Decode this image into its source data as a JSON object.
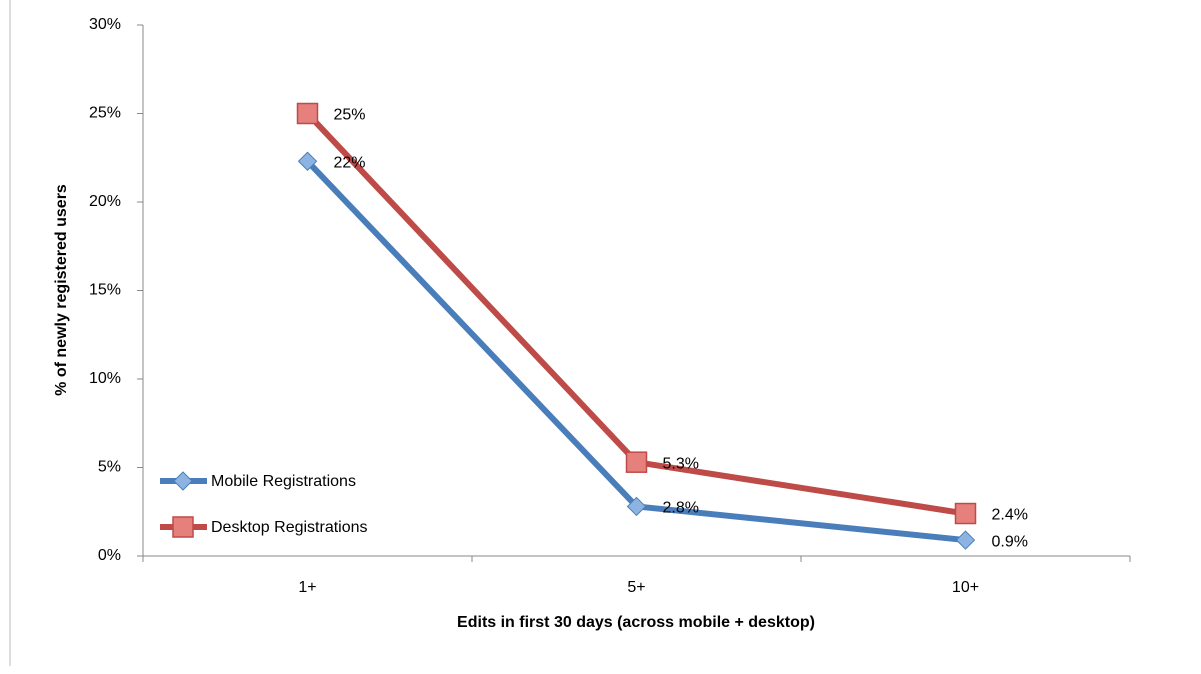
{
  "chart_data": {
    "type": "line",
    "x_label": "Edits in first 30 days (across mobile + desktop)",
    "y_label": "% of newly registered users",
    "categories": [
      "1+",
      "5+",
      "10+"
    ],
    "series": [
      {
        "name": "Mobile Registrations",
        "color": "#4a7ebb",
        "marker": "diamond",
        "values": [
          22.3,
          2.8,
          0.9
        ],
        "value_labels": [
          "22%",
          "2.8%",
          "0.9%"
        ]
      },
      {
        "name": "Desktop Registrations",
        "color": "#be4b48",
        "marker": "square",
        "values": [
          25,
          5.3,
          2.4
        ],
        "value_labels": [
          "25%",
          "5.3%",
          "2.4%"
        ]
      }
    ],
    "ylim": [
      0,
      30
    ],
    "yticks": [
      {
        "value": 0,
        "label": "0%"
      },
      {
        "value": 5,
        "label": "5%"
      },
      {
        "value": 10,
        "label": "10%"
      },
      {
        "value": 15,
        "label": "15%"
      },
      {
        "value": 20,
        "label": "20%"
      },
      {
        "value": 25,
        "label": "25%"
      },
      {
        "value": 30,
        "label": "30%"
      }
    ],
    "grid": false,
    "legend": "lower left"
  }
}
